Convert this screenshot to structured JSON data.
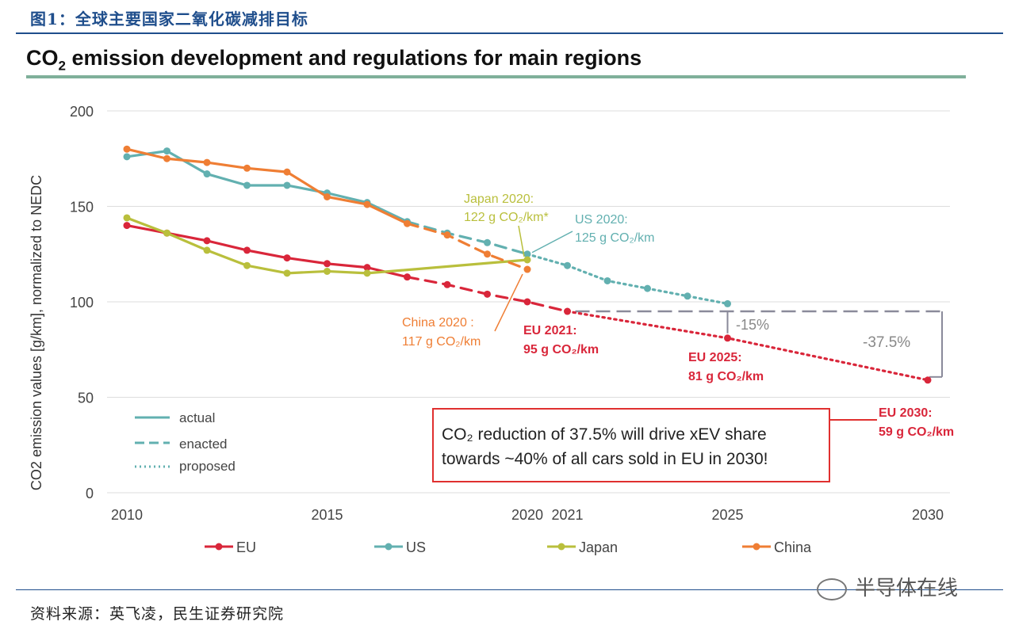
{
  "figure_caption": "图1：全球主要国家二氧化碳减排目标",
  "source_note": "资料来源：英飞凌，民生证券研究院",
  "watermark": "半导体在线",
  "colors": {
    "EU": "#d9263a",
    "US": "#62b0b0",
    "Japan": "#b9bf3c",
    "China": "#ef7e34",
    "grid": "#dddddd",
    "callout_border": "#e0302f",
    "enacted_gray": "#8a8a9a"
  },
  "chart_data": {
    "type": "line",
    "title_main": "CO",
    "title_sub": "2",
    "title_rest": " emission development and regulations for main regions",
    "ylabel": "CO2 emission values [g/km], normalized to NEDC",
    "ylim": [
      0,
      200
    ],
    "yticks": [
      0,
      50,
      100,
      150,
      200
    ],
    "xlim": [
      2010,
      2030
    ],
    "xticks": [
      {
        "value": 2010,
        "label": "2010"
      },
      {
        "value": 2015,
        "label": "2015"
      },
      {
        "value": 2020,
        "label": "2020"
      },
      {
        "value": 2021,
        "label": "2021"
      },
      {
        "value": 2025,
        "label": "2025"
      },
      {
        "value": 2030,
        "label": "2030"
      }
    ],
    "series": [
      {
        "name": "EU",
        "color": "#d9263a",
        "actual": [
          [
            2010,
            140
          ],
          [
            2011,
            136
          ],
          [
            2012,
            132
          ],
          [
            2013,
            127
          ],
          [
            2014,
            123
          ],
          [
            2015,
            120
          ],
          [
            2016,
            118
          ],
          [
            2017,
            113
          ]
        ],
        "enacted": [
          [
            2017,
            113
          ],
          [
            2018,
            109
          ],
          [
            2019,
            104
          ],
          [
            2020,
            100
          ],
          [
            2021,
            95
          ]
        ],
        "proposed": [
          [
            2021,
            95
          ],
          [
            2025,
            81
          ],
          [
            2030,
            59
          ]
        ]
      },
      {
        "name": "US",
        "color": "#62b0b0",
        "actual": [
          [
            2010,
            176
          ],
          [
            2011,
            179
          ],
          [
            2012,
            167
          ],
          [
            2013,
            161
          ],
          [
            2014,
            161
          ],
          [
            2015,
            157
          ],
          [
            2016,
            152
          ],
          [
            2017,
            142
          ]
        ],
        "enacted": [
          [
            2017,
            142
          ],
          [
            2018,
            136
          ],
          [
            2019,
            131
          ],
          [
            2020,
            125
          ]
        ],
        "proposed": [
          [
            2020,
            125
          ],
          [
            2021,
            119
          ],
          [
            2022,
            111
          ],
          [
            2023,
            107
          ],
          [
            2024,
            103
          ],
          [
            2025,
            99
          ]
        ]
      },
      {
        "name": "Japan",
        "color": "#b9bf3c",
        "actual": [
          [
            2010,
            144
          ],
          [
            2011,
            136
          ],
          [
            2012,
            127
          ],
          [
            2013,
            119
          ],
          [
            2014,
            115
          ],
          [
            2015,
            116
          ],
          [
            2016,
            115
          ],
          [
            2020,
            122
          ]
        ],
        "enacted": [],
        "proposed": []
      },
      {
        "name": "China",
        "color": "#ef7e34",
        "actual": [
          [
            2010,
            180
          ],
          [
            2011,
            175
          ],
          [
            2012,
            173
          ],
          [
            2013,
            170
          ],
          [
            2014,
            168
          ],
          [
            2015,
            155
          ],
          [
            2016,
            151
          ],
          [
            2017,
            141
          ]
        ],
        "enacted": [
          [
            2017,
            141
          ],
          [
            2018,
            135
          ],
          [
            2019,
            125
          ],
          [
            2020,
            117
          ]
        ],
        "proposed": []
      }
    ],
    "style_legend": [
      {
        "label": "actual",
        "dash": "solid"
      },
      {
        "label": "enacted",
        "dash": "dashed"
      },
      {
        "label": "proposed",
        "dash": "dotted"
      }
    ],
    "series_legend": [
      "EU",
      "US",
      "Japan",
      "China"
    ],
    "annotations": {
      "japan_2020": {
        "line1": "Japan 2020:",
        "line2": "122 g CO₂/km*"
      },
      "us_2020": {
        "line1": "US 2020:",
        "line2": "125 g CO₂/km"
      },
      "china_2020": {
        "line1": "China 2020 :",
        "line2": "117 g CO₂/km"
      },
      "eu_2021": {
        "line1": "EU 2021:",
        "line2": "95 g CO₂/km"
      },
      "eu_2025": {
        "line1": "EU 2025:",
        "line2": "81 g CO₂/km"
      },
      "eu_2030": {
        "line1": "EU 2030:",
        "line2": "59 g CO₂/km"
      },
      "pct_15": "-15%",
      "pct_375": "-37.5%",
      "callout_line1": "CO₂ reduction of 37.5% will drive xEV share",
      "callout_line2": "towards ~40% of all cars sold in EU in 2030!"
    },
    "legend_placement": "bottom",
    "grid": true
  }
}
